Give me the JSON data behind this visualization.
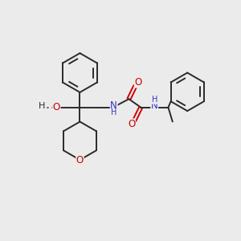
{
  "bg_color": "#ebebeb",
  "bond_color": "#2a2a2a",
  "oxygen_color": "#cc0000",
  "nitrogen_color": "#3333cc",
  "line_width": 1.4,
  "fig_size": [
    3.0,
    3.0
  ],
  "dpi": 100,
  "xlim": [
    0,
    10
  ],
  "ylim": [
    0,
    10
  ]
}
